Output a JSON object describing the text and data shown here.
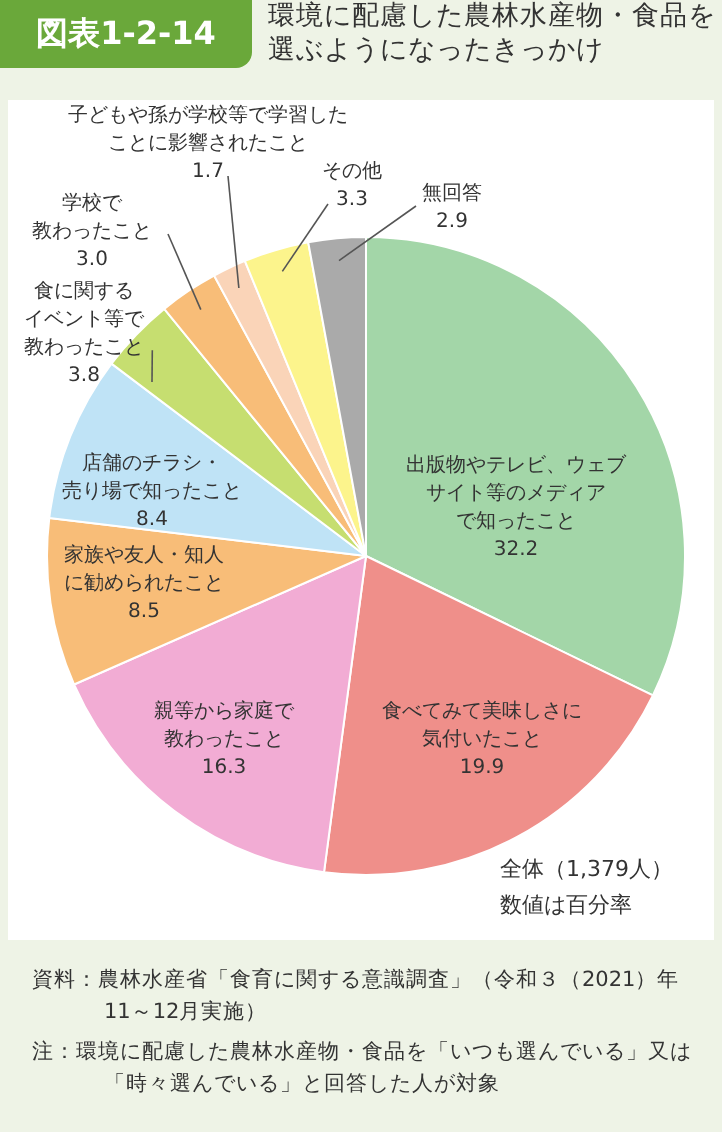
{
  "chart_data": {
    "type": "pie",
    "subtitle": "図表1-2-14",
    "title": "環境に配慮した農林水産物・食品を選ぶようになったきっかけ",
    "categories": [
      "出版物やテレビ、ウェブサイト等のメディアで知ったこと",
      "食べてみて美味しさに気付いたこと",
      "親等から家庭で教わったこと",
      "家族や友人・知人に勧められたこと",
      "店舗のチラシ・売り場で知ったこと",
      "食に関するイベント等で教わったこと",
      "学校で教わったこと",
      "子どもや孫が学校等で学習したことに影響されたこと",
      "その他",
      "無回答"
    ],
    "values": [
      32.2,
      19.9,
      16.3,
      8.5,
      8.4,
      3.8,
      3.0,
      1.7,
      3.3,
      2.9
    ],
    "value_labels": [
      "32.2",
      "19.9",
      "16.3",
      "8.5",
      "8.4",
      "3.8",
      "3.0",
      "1.7",
      "3.3",
      "2.9"
    ],
    "colors": [
      "#a3d6a8",
      "#ef8f8a",
      "#f2acd4",
      "#f8bd78",
      "#bfe3f6",
      "#c6de70",
      "#f8bd78",
      "#fad4b8",
      "#fcf48c",
      "#aaaaaa"
    ],
    "legend": false,
    "annotations": [
      "全体（1,379人）",
      "数値は百分率",
      "資料：農林水産省「食育に関する意識調査」（令和３（2021）年11～12月実施）",
      "注：環境に配慮した農林水産物・食品を「いつも選んでいる」又は「時々選んでいる」と回答した人が対象"
    ]
  }
}
